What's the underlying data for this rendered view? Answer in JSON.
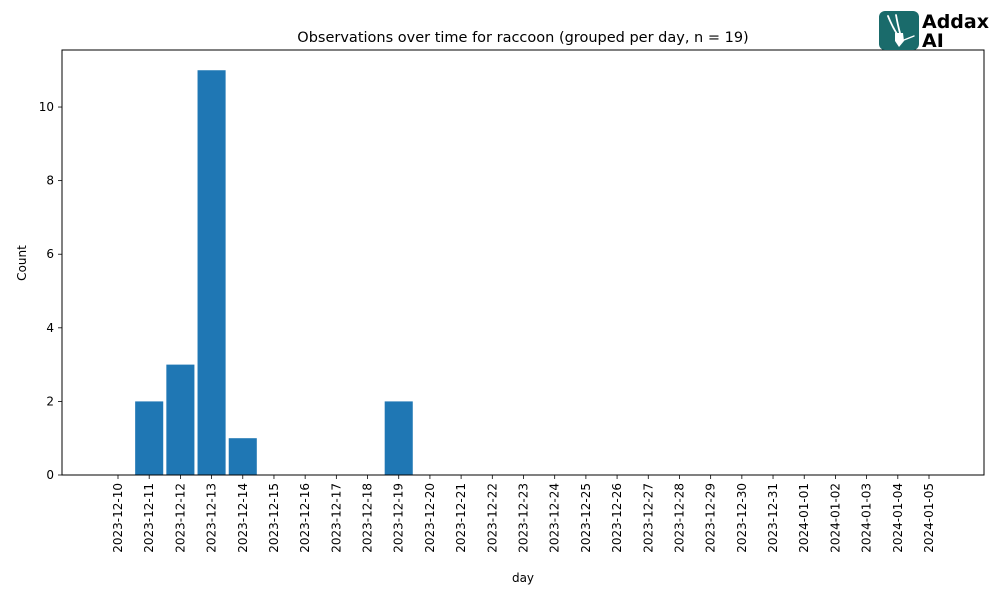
{
  "chart_data": {
    "type": "bar",
    "title": "Observations over time for raccoon (grouped per day, n = 19)",
    "xlabel": "day",
    "ylabel": "Count",
    "categories": [
      "2023-12-10",
      "2023-12-11",
      "2023-12-12",
      "2023-12-13",
      "2023-12-14",
      "2023-12-15",
      "2023-12-16",
      "2023-12-17",
      "2023-12-18",
      "2023-12-19",
      "2023-12-20",
      "2023-12-21",
      "2023-12-22",
      "2023-12-23",
      "2023-12-24",
      "2023-12-25",
      "2023-12-26",
      "2023-12-27",
      "2023-12-28",
      "2023-12-29",
      "2023-12-30",
      "2023-12-31",
      "2024-01-01",
      "2024-01-02",
      "2024-01-03",
      "2024-01-04",
      "2024-01-05"
    ],
    "values": [
      0,
      2,
      3,
      11,
      1,
      0,
      0,
      0,
      0,
      2,
      0,
      0,
      0,
      0,
      0,
      0,
      0,
      0,
      0,
      0,
      0,
      0,
      0,
      0,
      0,
      0,
      0
    ],
    "ylim": [
      0,
      11.55
    ],
    "yticks": [
      0,
      2,
      4,
      6,
      8,
      10
    ],
    "grid": false,
    "bar_color": "#1f77b4"
  },
  "logo": {
    "line1": "Addax",
    "line2": "AI",
    "color": "#1a6b6b"
  }
}
